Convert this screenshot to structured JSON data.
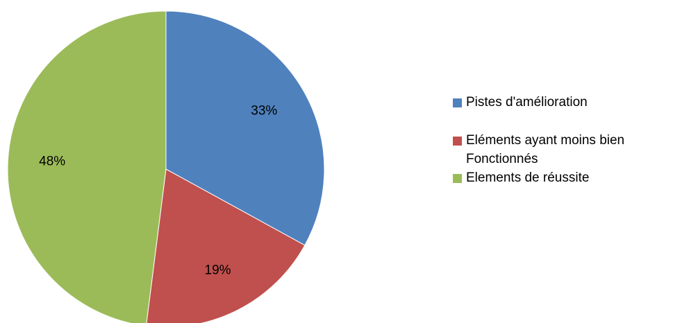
{
  "chart_data": {
    "type": "pie",
    "title": "",
    "slices": [
      {
        "label": "Pistes d'amélioration",
        "value": 33,
        "display": "33%",
        "color": "#4f81bd"
      },
      {
        "label": "Eléments ayant moins bien Fonctionnés",
        "value": 19,
        "display": "19%",
        "color": "#c0504d"
      },
      {
        "label": "Elements de réussite",
        "value": 48,
        "display": "48%",
        "color": "#9bbb59"
      }
    ],
    "legend_position": "right",
    "start_angle": "top",
    "direction": "clockwise"
  }
}
